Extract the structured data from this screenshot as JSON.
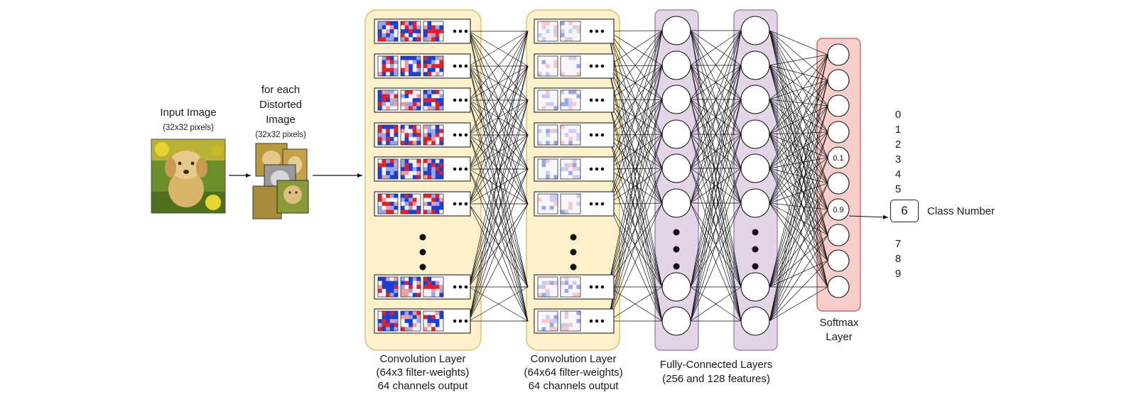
{
  "input": {
    "title": "Input Image",
    "subtitle": "(32x32 pixels)"
  },
  "distorted": {
    "lines": [
      "for each",
      "Distorted",
      "Image"
    ],
    "subtitle": "(32x32 pixels)"
  },
  "conv1": {
    "lines": [
      "Convolution Layer",
      "(64x3 filter-weights)",
      "64 channels output"
    ]
  },
  "conv2": {
    "lines": [
      "Convolution Layer",
      "(64x64 filter-weights)",
      "64 channels output"
    ]
  },
  "fc": {
    "lines": [
      "Fully-Connected Layers",
      "(256 and 128 features)"
    ]
  },
  "softmax": {
    "lines": [
      "Softmax",
      "Layer"
    ],
    "values": [
      "0.1",
      "0.9"
    ]
  },
  "classes": [
    "0",
    "1",
    "2",
    "3",
    "4",
    "5",
    "7",
    "8",
    "9"
  ],
  "result": {
    "value": "6",
    "label": "Class Number"
  },
  "colors": {
    "conv_bg": "#fdf1cb",
    "conv_border": "#d6b656",
    "fc_bg": "#e1d5e7",
    "fc_border": "#9673a6",
    "softmax_bg": "#f8cecc",
    "softmax_border": "#b85450"
  }
}
